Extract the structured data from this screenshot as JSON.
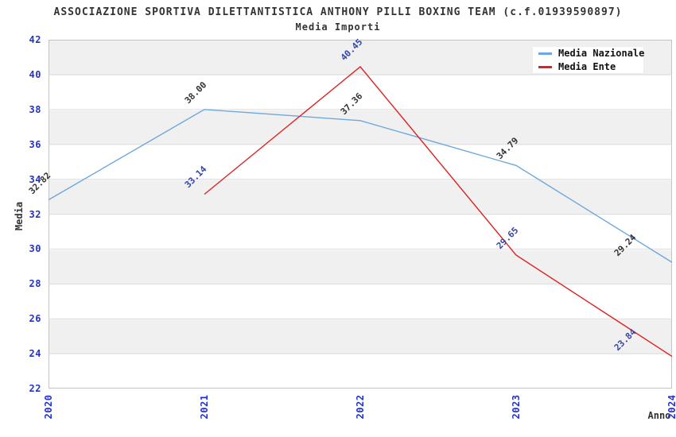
{
  "header": {
    "title": "ASSOCIAZIONE SPORTIVA DILETTANTISTICA ANTHONY PILLI BOXING TEAM (c.f.01939590897)",
    "subtitle": "Media Importi"
  },
  "chart_data": {
    "type": "line",
    "categories": [
      "2020",
      "2021",
      "2022",
      "2023",
      "2024"
    ],
    "series": [
      {
        "name": "Media Nazionale",
        "color": "#6FA8DC",
        "label_color": "#333333",
        "values": [
          32.82,
          38.0,
          37.36,
          34.79,
          29.24
        ]
      },
      {
        "name": "Media Ente",
        "color": "#DD2222",
        "label_color": "#3344AA",
        "values": [
          null,
          33.14,
          40.45,
          29.65,
          23.84
        ]
      }
    ],
    "title": "Media Importi",
    "xlabel": "Anno",
    "ylabel": "Media",
    "ylim": [
      22,
      42
    ],
    "yticks": [
      22,
      24,
      26,
      28,
      30,
      32,
      34,
      36,
      38,
      40,
      42
    ],
    "grid": "horizontal-bands",
    "legend_position": "top-right",
    "colors": {
      "tick_label": "#2233cc",
      "axis_title": "#333333",
      "band_gray": "#f0f0f0",
      "grid_line": "#dedede",
      "plot_border": "#c4c4c4"
    }
  }
}
